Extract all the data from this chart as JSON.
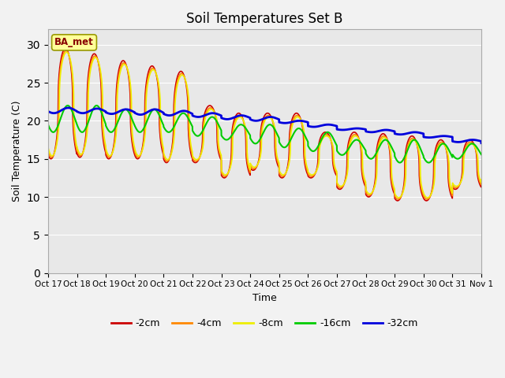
{
  "title": "Soil Temperatures Set B",
  "xlabel": "Time",
  "ylabel": "Soil Temperature (C)",
  "annotation": "BA_met",
  "ylim": [
    0,
    32
  ],
  "yticks": [
    0,
    5,
    10,
    15,
    20,
    25,
    30
  ],
  "xtick_labels": [
    "Oct 17",
    "Oct 18",
    "Oct 19",
    "Oct 20",
    "Oct 21",
    "Oct 22",
    "Oct 23",
    "Oct 24",
    "Oct 25",
    "Oct 26",
    "Oct 27",
    "Oct 28",
    "Oct 29",
    "Oct 30",
    "Oct 31",
    "Nov 1"
  ],
  "series_colors": [
    "#cc0000",
    "#ff8800",
    "#eeee00",
    "#00cc00",
    "#0000dd"
  ],
  "series_labels": [
    "-2cm",
    "-4cm",
    "-8cm",
    "-16cm",
    "-32cm"
  ],
  "plot_bg_color": "#e8e8e8",
  "fig_bg_color": "#f2f2f2",
  "peak_2cm": [
    29.5,
    28.8,
    27.9,
    27.2,
    26.5,
    22.0,
    21.0,
    21.0,
    21.0,
    18.5,
    18.5,
    18.3,
    18.0,
    17.5,
    17.5,
    17.0
  ],
  "trough_2cm": [
    15.0,
    15.2,
    15.0,
    15.0,
    14.5,
    14.5,
    12.5,
    13.5,
    12.5,
    12.5,
    11.0,
    10.0,
    9.5,
    9.5,
    11.0,
    11.5
  ],
  "peak_16cm": [
    22.0,
    22.0,
    21.5,
    21.5,
    21.0,
    20.5,
    19.5,
    19.5,
    19.0,
    18.5,
    17.5,
    17.5,
    17.5,
    17.0,
    17.0,
    17.0
  ],
  "trough_16cm": [
    18.5,
    18.5,
    18.5,
    18.5,
    18.5,
    18.0,
    17.5,
    17.0,
    16.5,
    16.0,
    15.5,
    15.0,
    14.5,
    14.5,
    15.0,
    15.0
  ],
  "peak_32cm": [
    21.7,
    21.6,
    21.5,
    21.5,
    21.3,
    21.0,
    20.7,
    20.5,
    20.0,
    19.5,
    19.0,
    18.8,
    18.5,
    18.0,
    17.5,
    17.2
  ],
  "trough_32cm": [
    21.0,
    21.0,
    20.9,
    20.8,
    20.7,
    20.5,
    20.2,
    20.0,
    19.7,
    19.2,
    18.8,
    18.5,
    18.2,
    17.8,
    17.2,
    17.0
  ]
}
